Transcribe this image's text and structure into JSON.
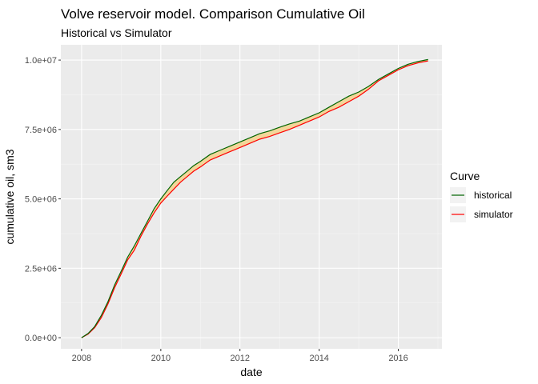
{
  "chart_data": {
    "type": "area",
    "title": "Volve reservoir model. Comparison Cumulative Oil",
    "subtitle": "Historical vs Simulator",
    "xlabel": "date",
    "ylabel": "cumulative oil, sm3",
    "xlim": [
      "2007-06-24",
      "2017-02-06"
    ],
    "ylim": [
      -400000,
      10550000
    ],
    "x_ticks": [
      {
        "date": "2008-01-01",
        "label": "2008"
      },
      {
        "date": "2010-01-01",
        "label": "2010"
      },
      {
        "date": "2012-01-01",
        "label": "2012"
      },
      {
        "date": "2014-01-01",
        "label": "2014"
      },
      {
        "date": "2016-01-01",
        "label": "2016"
      }
    ],
    "y_ticks": [
      {
        "value": 0,
        "label": "0.0e+00"
      },
      {
        "value": 2500000,
        "label": "2.5e+06"
      },
      {
        "value": 5000000,
        "label": "5.0e+06"
      },
      {
        "value": 7500000,
        "label": "7.5e+06"
      },
      {
        "value": 10000000,
        "label": "1.0e+07"
      }
    ],
    "grid": true,
    "background_color": "#ebebeb",
    "ribbon_fill": "#f3d69a",
    "legend": {
      "title": "Curve",
      "position": "right",
      "items": [
        {
          "name": "historical",
          "color": "#006400"
        },
        {
          "name": "simulator",
          "color": "#ff0000"
        }
      ]
    },
    "x": [
      "2008-01-01",
      "2008-03-01",
      "2008-05-01",
      "2008-07-01",
      "2008-09-01",
      "2008-11-01",
      "2009-01-01",
      "2009-03-01",
      "2009-05-01",
      "2009-07-01",
      "2009-09-01",
      "2009-11-01",
      "2010-01-01",
      "2010-03-01",
      "2010-05-01",
      "2010-07-01",
      "2010-09-01",
      "2010-11-01",
      "2011-01-01",
      "2011-04-01",
      "2011-07-01",
      "2011-10-01",
      "2012-01-01",
      "2012-04-01",
      "2012-07-01",
      "2012-10-01",
      "2013-01-01",
      "2013-04-01",
      "2013-07-01",
      "2013-10-01",
      "2014-01-01",
      "2014-04-01",
      "2014-07-01",
      "2014-10-01",
      "2015-01-01",
      "2015-04-01",
      "2015-07-01",
      "2015-10-01",
      "2016-01-01",
      "2016-04-01",
      "2016-07-01",
      "2016-10-01"
    ],
    "series": [
      {
        "name": "historical",
        "color": "#006400",
        "values": [
          0,
          150000,
          400000,
          800000,
          1300000,
          1900000,
          2400000,
          2900000,
          3300000,
          3750000,
          4200000,
          4650000,
          5000000,
          5300000,
          5600000,
          5800000,
          6000000,
          6200000,
          6350000,
          6600000,
          6750000,
          6900000,
          7050000,
          7200000,
          7350000,
          7450000,
          7580000,
          7700000,
          7800000,
          7950000,
          8100000,
          8300000,
          8500000,
          8700000,
          8850000,
          9050000,
          9300000,
          9500000,
          9700000,
          9850000,
          9950000,
          10020000
        ]
      },
      {
        "name": "simulator",
        "color": "#ff0000",
        "values": [
          0,
          130000,
          360000,
          720000,
          1220000,
          1800000,
          2300000,
          2800000,
          3150000,
          3650000,
          4100000,
          4500000,
          4850000,
          5100000,
          5350000,
          5600000,
          5800000,
          6000000,
          6150000,
          6400000,
          6550000,
          6700000,
          6850000,
          7000000,
          7150000,
          7250000,
          7380000,
          7500000,
          7650000,
          7800000,
          7950000,
          8150000,
          8300000,
          8500000,
          8700000,
          8950000,
          9250000,
          9450000,
          9650000,
          9800000,
          9900000,
          9970000
        ]
      }
    ]
  }
}
